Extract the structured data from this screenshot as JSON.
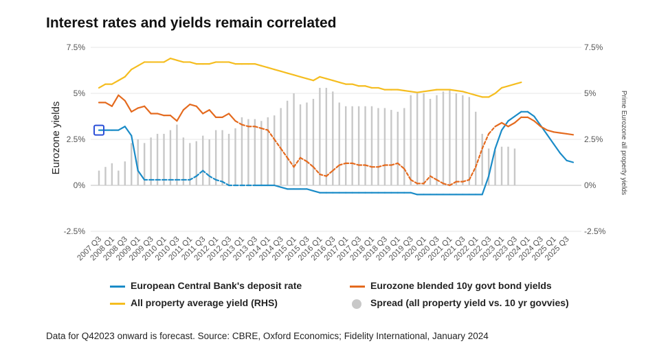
{
  "title": "Interest rates and yields remain correlated",
  "footnote": "Data for Q42023 onward is forecast. Source: CBRE, Oxford Economics; Fidelity International, January 2024",
  "colors": {
    "ecb": "#1a8bc7",
    "bond": "#e46a1e",
    "property": "#f5bd1f",
    "spread": "#c8c8c8",
    "grid": "#e4e4e4",
    "zero": "#bfbfbf",
    "marker": "#2b4fd8"
  },
  "legend": [
    {
      "label": "European Central Bank's deposit rate",
      "series": "ecb",
      "kind": "line"
    },
    {
      "label": "Eurozone blended 10y govt bond yields",
      "series": "bond",
      "kind": "line"
    },
    {
      "label": "All property average yield (RHS)",
      "series": "property",
      "kind": "line"
    },
    {
      "label": "Spread (all property yield vs. 10 yr govvies)",
      "series": "spread",
      "kind": "dot"
    }
  ],
  "chart_data": {
    "type": "line",
    "title": "Interest rates and yields remain correlated",
    "ylabel": "Eurozone yields",
    "y2label": "Prime Eurozone all property yields",
    "ylim": [
      -2.5,
      7.5
    ],
    "y2lim": [
      -2.5,
      7.5
    ],
    "yticks": [
      "-2.5%",
      "0%",
      "2.5%",
      "5%",
      "7.5%"
    ],
    "y2ticks": [
      "-2.5%",
      "0%",
      "2.5%",
      "5%",
      "7.5%"
    ],
    "grid": true,
    "legend_position": "bottom",
    "forecast_start": "2023 Q4",
    "x_tick_labels": [
      "2007 Q3",
      "2008 Q1",
      "2008 Q3",
      "2009 Q1",
      "2009 Q3",
      "2010 Q1",
      "2010 Q3",
      "2011 Q1",
      "2011 Q3",
      "2012 Q1",
      "2012 Q3",
      "2013 Q1",
      "2013 Q3",
      "2014 Q1",
      "2014 Q3",
      "2015 Q1",
      "2015 Q3",
      "2016 Q1",
      "2016 Q3",
      "2017 Q1",
      "2017 Q3",
      "2018 Q1",
      "2018 Q3",
      "2019 Q1",
      "2019 Q3",
      "2020 Q1",
      "2020 Q3",
      "2021 Q1",
      "2021 Q3",
      "2022 Q1",
      "2022 Q3",
      "2023 Q1",
      "2023 Q3",
      "2024 Q1",
      "2024 Q3",
      "2025 Q1",
      "2025 Q3"
    ],
    "x": [
      "2007 Q3",
      "2007 Q4",
      "2008 Q1",
      "2008 Q2",
      "2008 Q3",
      "2008 Q4",
      "2009 Q1",
      "2009 Q2",
      "2009 Q3",
      "2009 Q4",
      "2010 Q1",
      "2010 Q2",
      "2010 Q3",
      "2010 Q4",
      "2011 Q1",
      "2011 Q2",
      "2011 Q3",
      "2011 Q4",
      "2012 Q1",
      "2012 Q2",
      "2012 Q3",
      "2012 Q4",
      "2013 Q1",
      "2013 Q2",
      "2013 Q3",
      "2013 Q4",
      "2014 Q1",
      "2014 Q2",
      "2014 Q3",
      "2014 Q4",
      "2015 Q1",
      "2015 Q2",
      "2015 Q3",
      "2015 Q4",
      "2016 Q1",
      "2016 Q2",
      "2016 Q3",
      "2016 Q4",
      "2017 Q1",
      "2017 Q2",
      "2017 Q3",
      "2017 Q4",
      "2018 Q1",
      "2018 Q2",
      "2018 Q3",
      "2018 Q4",
      "2019 Q1",
      "2019 Q2",
      "2019 Q3",
      "2019 Q4",
      "2020 Q1",
      "2020 Q2",
      "2020 Q3",
      "2020 Q4",
      "2021 Q1",
      "2021 Q2",
      "2021 Q3",
      "2021 Q4",
      "2022 Q1",
      "2022 Q2",
      "2022 Q3",
      "2022 Q4",
      "2023 Q1",
      "2023 Q2",
      "2023 Q3",
      "2023 Q4",
      "2024 Q1",
      "2024 Q2",
      "2024 Q3",
      "2024 Q4",
      "2025 Q1",
      "2025 Q2",
      "2025 Q3",
      "2025 Q4"
    ],
    "series": [
      {
        "key": "ecb",
        "name": "European Central Bank's deposit rate",
        "axis": "left",
        "dashed_ranges": [
          [
            7,
            24
          ]
        ],
        "values": [
          3.0,
          3.0,
          3.0,
          3.0,
          3.2,
          2.7,
          0.8,
          0.3,
          0.3,
          0.3,
          0.3,
          0.3,
          0.3,
          0.3,
          0.3,
          0.5,
          0.8,
          0.5,
          0.3,
          0.2,
          0.0,
          0.0,
          0.0,
          0.0,
          0.0,
          0.0,
          0.0,
          0.0,
          -0.1,
          -0.2,
          -0.2,
          -0.2,
          -0.2,
          -0.3,
          -0.4,
          -0.4,
          -0.4,
          -0.4,
          -0.4,
          -0.4,
          -0.4,
          -0.4,
          -0.4,
          -0.4,
          -0.4,
          -0.4,
          -0.4,
          -0.4,
          -0.4,
          -0.5,
          -0.5,
          -0.5,
          -0.5,
          -0.5,
          -0.5,
          -0.5,
          -0.5,
          -0.5,
          -0.5,
          -0.5,
          0.5,
          2.0,
          3.0,
          3.5,
          3.75,
          4.0,
          4.0,
          3.75,
          3.25,
          2.75,
          2.25,
          1.75,
          1.35,
          1.25
        ]
      },
      {
        "key": "bond",
        "name": "Eurozone blended 10y govt bond yields",
        "axis": "left",
        "dashed_ranges": [
          [
            21,
            61
          ]
        ],
        "values": [
          4.5,
          4.5,
          4.3,
          4.9,
          4.6,
          4.0,
          4.2,
          4.3,
          3.9,
          3.9,
          3.8,
          3.8,
          3.5,
          4.1,
          4.4,
          4.3,
          3.9,
          4.1,
          3.7,
          3.7,
          3.9,
          3.5,
          3.3,
          3.2,
          3.2,
          3.1,
          3.0,
          2.5,
          2.0,
          1.5,
          1.0,
          1.5,
          1.3,
          1.0,
          0.6,
          0.5,
          0.8,
          1.1,
          1.2,
          1.2,
          1.1,
          1.1,
          1.0,
          1.0,
          1.1,
          1.1,
          1.2,
          0.9,
          0.3,
          0.1,
          0.1,
          0.5,
          0.3,
          0.1,
          0.0,
          0.2,
          0.2,
          0.3,
          1.0,
          2.0,
          2.8,
          3.2,
          3.4,
          3.2,
          3.4,
          3.7,
          3.7,
          3.5,
          3.2,
          3.0,
          2.9,
          2.85,
          2.8,
          2.75
        ]
      },
      {
        "key": "property",
        "name": "All property average yield (RHS)",
        "axis": "right",
        "values": [
          5.3,
          5.5,
          5.5,
          5.7,
          5.9,
          6.3,
          6.5,
          6.7,
          6.7,
          6.7,
          6.7,
          6.9,
          6.8,
          6.7,
          6.7,
          6.6,
          6.6,
          6.6,
          6.7,
          6.7,
          6.7,
          6.6,
          6.6,
          6.6,
          6.6,
          6.5,
          6.4,
          6.3,
          6.2,
          6.1,
          6.0,
          5.9,
          5.8,
          5.7,
          5.9,
          5.8,
          5.7,
          5.6,
          5.5,
          5.5,
          5.4,
          5.4,
          5.3,
          5.3,
          5.2,
          5.2,
          5.2,
          5.15,
          5.1,
          5.05,
          5.1,
          5.15,
          5.2,
          5.2,
          5.2,
          5.15,
          5.1,
          5.0,
          4.9,
          4.8,
          4.8,
          5.0,
          5.3,
          5.4,
          5.5,
          5.6,
          null,
          null,
          null,
          null,
          null,
          null,
          null,
          null
        ]
      },
      {
        "key": "spread",
        "name": "Spread (all property yield vs. 10 yr govvies)",
        "axis": "right",
        "type": "bar",
        "values": [
          0.8,
          1.0,
          1.2,
          0.8,
          1.3,
          2.3,
          2.5,
          2.3,
          2.6,
          2.8,
          2.8,
          3.0,
          3.3,
          2.6,
          2.3,
          2.4,
          2.7,
          2.5,
          3.0,
          3.0,
          2.8,
          3.1,
          3.7,
          3.6,
          3.6,
          3.5,
          3.7,
          3.8,
          4.2,
          4.6,
          5.0,
          4.4,
          4.5,
          4.7,
          5.3,
          5.3,
          5.1,
          4.5,
          4.3,
          4.3,
          4.3,
          4.3,
          4.3,
          4.2,
          4.2,
          4.1,
          4.0,
          4.2,
          4.9,
          5.0,
          5.0,
          4.7,
          4.9,
          5.1,
          5.2,
          5.0,
          4.9,
          4.8,
          4.0,
          2.8,
          2.0,
          1.9,
          2.1,
          2.1,
          2.0,
          null,
          null,
          null,
          null,
          null,
          null,
          null,
          null,
          null
        ]
      }
    ]
  }
}
